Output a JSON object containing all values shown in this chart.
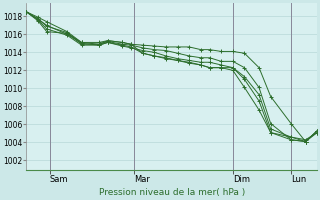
{
  "xlabel": "Pression niveau de la mer( hPa )",
  "bg_color": "#cce8e8",
  "plot_bg_color": "#d8f0f0",
  "grid_color": "#b8d8d8",
  "line_color": "#2d6e2d",
  "vline_color": "#888899",
  "ylim": [
    1001,
    1019.5
  ],
  "yticks": [
    1002,
    1004,
    1006,
    1008,
    1010,
    1012,
    1014,
    1016,
    1018
  ],
  "day_ticks": [
    0.08,
    0.37,
    0.71,
    0.91
  ],
  "day_labels": [
    "Sam",
    "Mar",
    "Dim",
    "Lun"
  ],
  "lines": [
    {
      "x": [
        0.0,
        0.04,
        0.07,
        0.14,
        0.19,
        0.25,
        0.28,
        0.33,
        0.36,
        0.4,
        0.44,
        0.48,
        0.52,
        0.56,
        0.6,
        0.63,
        0.67,
        0.71,
        0.75,
        0.8,
        0.84,
        0.91,
        0.96,
        1.0
      ],
      "y": [
        1018.5,
        1017.9,
        1017.4,
        1016.3,
        1015.1,
        1014.9,
        1015.3,
        1015.1,
        1014.9,
        1014.8,
        1014.7,
        1014.6,
        1014.6,
        1014.6,
        1014.3,
        1014.3,
        1014.1,
        1014.1,
        1013.9,
        1012.3,
        1009.1,
        1006.1,
        1004.1,
        1005.1
      ]
    },
    {
      "x": [
        0.0,
        0.04,
        0.07,
        0.14,
        0.19,
        0.25,
        0.28,
        0.33,
        0.36,
        0.4,
        0.44,
        0.48,
        0.52,
        0.56,
        0.6,
        0.63,
        0.67,
        0.71,
        0.75,
        0.8,
        0.84,
        0.91,
        0.96,
        1.0
      ],
      "y": [
        1018.5,
        1017.7,
        1016.9,
        1016.2,
        1014.9,
        1014.9,
        1015.2,
        1014.9,
        1014.8,
        1014.5,
        1014.3,
        1014.2,
        1013.9,
        1013.6,
        1013.4,
        1013.4,
        1013.0,
        1013.0,
        1012.3,
        1010.1,
        1006.1,
        1004.3,
        1004.1,
        1005.3
      ]
    },
    {
      "x": [
        0.0,
        0.04,
        0.07,
        0.14,
        0.19,
        0.25,
        0.28,
        0.33,
        0.36,
        0.4,
        0.44,
        0.48,
        0.52,
        0.56,
        0.6,
        0.63,
        0.67,
        0.71,
        0.75,
        0.8,
        0.84,
        0.91,
        0.96,
        1.0
      ],
      "y": [
        1018.5,
        1017.6,
        1016.6,
        1015.9,
        1014.8,
        1014.8,
        1015.1,
        1014.7,
        1014.5,
        1014.2,
        1014.0,
        1013.6,
        1013.3,
        1013.1,
        1012.9,
        1012.9,
        1012.6,
        1012.3,
        1011.3,
        1009.3,
        1005.5,
        1004.6,
        1004.3,
        1005.1
      ]
    },
    {
      "x": [
        0.0,
        0.04,
        0.07,
        0.14,
        0.19,
        0.25,
        0.28,
        0.33,
        0.36,
        0.4,
        0.44,
        0.48,
        0.52,
        0.56,
        0.6,
        0.63,
        0.67,
        0.71,
        0.75,
        0.8,
        0.84,
        0.91,
        0.96,
        1.0
      ],
      "y": [
        1018.5,
        1017.5,
        1016.3,
        1016.1,
        1015.1,
        1015.1,
        1015.3,
        1015.1,
        1014.9,
        1013.9,
        1013.6,
        1013.3,
        1013.1,
        1012.9,
        1012.6,
        1012.3,
        1012.3,
        1012.3,
        1011.0,
        1008.6,
        1005.1,
        1004.3,
        1004.1,
        1005.3
      ]
    },
    {
      "x": [
        0.0,
        0.04,
        0.07,
        0.14,
        0.19,
        0.25,
        0.28,
        0.33,
        0.36,
        0.4,
        0.44,
        0.48,
        0.52,
        0.56,
        0.6,
        0.63,
        0.67,
        0.71,
        0.75,
        0.8,
        0.84,
        0.91,
        0.96,
        1.0
      ],
      "y": [
        1018.5,
        1017.7,
        1017.0,
        1016.0,
        1015.0,
        1014.8,
        1015.1,
        1014.8,
        1014.6,
        1013.9,
        1013.6,
        1013.4,
        1013.1,
        1012.8,
        1012.6,
        1012.3,
        1012.3,
        1012.0,
        1010.1,
        1007.6,
        1005.1,
        1004.6,
        1004.1,
        1005.3
      ]
    }
  ]
}
